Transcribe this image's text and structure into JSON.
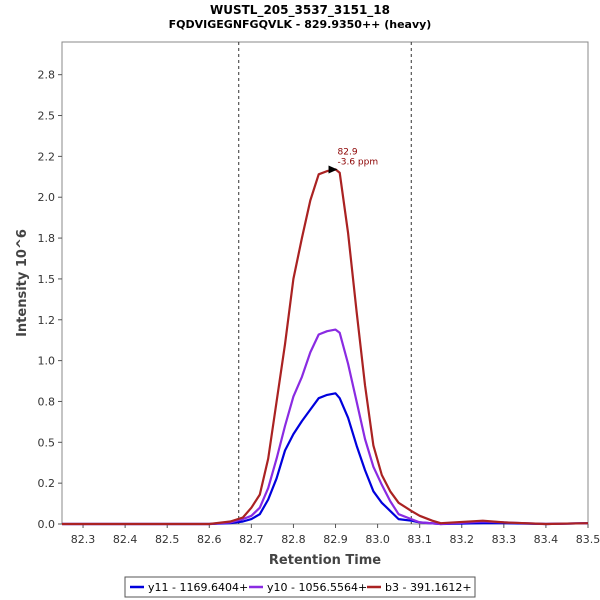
{
  "chart_data": {
    "type": "line",
    "title": "WUSTL_205_3537_3151_18",
    "subtitle": "FQDVIGEGNFGQVLK - 829.9350++ (heavy)",
    "xlabel": "Retention Time",
    "ylabel": "Intensity 10^6",
    "xlim": [
      82.25,
      83.5
    ],
    "ylim": [
      0,
      2.95
    ],
    "x_ticks": [
      "82.3",
      "82.4",
      "82.5",
      "82.6",
      "82.7",
      "82.8",
      "82.9",
      "83.0",
      "83.1",
      "83.2",
      "83.3",
      "83.4",
      "83.5"
    ],
    "y_ticks": [
      "0.0",
      "0.2",
      "0.5",
      "0.8",
      "1.0",
      "1.2",
      "1.5",
      "1.8",
      "2.0",
      "2.2",
      "2.5",
      "2.8"
    ],
    "boundaries": [
      82.67,
      83.08
    ],
    "annotation": {
      "x": 82.9,
      "y": 2.17,
      "line1": "82.9",
      "line2": "-3.6 ppm"
    },
    "series": [
      {
        "name": "y11 - 1169.6404+",
        "color": "#0000dd",
        "points": [
          [
            82.25,
            0.0
          ],
          [
            82.6,
            0.0
          ],
          [
            82.65,
            0.005
          ],
          [
            82.68,
            0.015
          ],
          [
            82.7,
            0.03
          ],
          [
            82.72,
            0.06
          ],
          [
            82.74,
            0.15
          ],
          [
            82.76,
            0.28
          ],
          [
            82.78,
            0.45
          ],
          [
            82.8,
            0.55
          ],
          [
            82.82,
            0.63
          ],
          [
            82.84,
            0.7
          ],
          [
            82.86,
            0.77
          ],
          [
            82.88,
            0.79
          ],
          [
            82.9,
            0.8
          ],
          [
            82.91,
            0.77
          ],
          [
            82.93,
            0.65
          ],
          [
            82.95,
            0.48
          ],
          [
            82.97,
            0.33
          ],
          [
            82.99,
            0.2
          ],
          [
            83.01,
            0.13
          ],
          [
            83.03,
            0.08
          ],
          [
            83.05,
            0.03
          ],
          [
            83.08,
            0.02
          ],
          [
            83.1,
            0.01
          ],
          [
            83.15,
            0.0
          ],
          [
            83.25,
            0.005
          ],
          [
            83.3,
            0.005
          ],
          [
            83.4,
            0.0
          ],
          [
            83.5,
            0.005
          ]
        ]
      },
      {
        "name": "y10 - 1056.5564+",
        "color": "#8a2be2",
        "points": [
          [
            82.25,
            0.0
          ],
          [
            82.6,
            0.0
          ],
          [
            82.65,
            0.01
          ],
          [
            82.68,
            0.03
          ],
          [
            82.7,
            0.05
          ],
          [
            82.72,
            0.1
          ],
          [
            82.74,
            0.22
          ],
          [
            82.76,
            0.4
          ],
          [
            82.78,
            0.6
          ],
          [
            82.8,
            0.78
          ],
          [
            82.82,
            0.9
          ],
          [
            82.84,
            1.05
          ],
          [
            82.86,
            1.16
          ],
          [
            82.88,
            1.18
          ],
          [
            82.9,
            1.19
          ],
          [
            82.91,
            1.17
          ],
          [
            82.93,
            0.98
          ],
          [
            82.95,
            0.75
          ],
          [
            82.97,
            0.52
          ],
          [
            82.99,
            0.35
          ],
          [
            83.01,
            0.24
          ],
          [
            83.03,
            0.14
          ],
          [
            83.05,
            0.06
          ],
          [
            83.08,
            0.03
          ],
          [
            83.1,
            0.01
          ],
          [
            83.15,
            0.0
          ],
          [
            83.25,
            0.015
          ],
          [
            83.3,
            0.01
          ],
          [
            83.4,
            0.0
          ],
          [
            83.5,
            0.005
          ]
        ]
      },
      {
        "name": "b3 - 391.1612+",
        "color": "#aa2222",
        "points": [
          [
            82.25,
            0.0
          ],
          [
            82.6,
            0.0
          ],
          [
            82.65,
            0.015
          ],
          [
            82.68,
            0.04
          ],
          [
            82.7,
            0.1
          ],
          [
            82.72,
            0.18
          ],
          [
            82.74,
            0.4
          ],
          [
            82.76,
            0.75
          ],
          [
            82.78,
            1.1
          ],
          [
            82.8,
            1.5
          ],
          [
            82.82,
            1.75
          ],
          [
            82.84,
            1.98
          ],
          [
            82.86,
            2.14
          ],
          [
            82.88,
            2.16
          ],
          [
            82.9,
            2.17
          ],
          [
            82.91,
            2.15
          ],
          [
            82.93,
            1.78
          ],
          [
            82.95,
            1.3
          ],
          [
            82.97,
            0.85
          ],
          [
            82.99,
            0.48
          ],
          [
            83.01,
            0.3
          ],
          [
            83.03,
            0.2
          ],
          [
            83.05,
            0.13
          ],
          [
            83.08,
            0.08
          ],
          [
            83.1,
            0.05
          ],
          [
            83.13,
            0.02
          ],
          [
            83.15,
            0.005
          ],
          [
            83.25,
            0.02
          ],
          [
            83.3,
            0.01
          ],
          [
            83.4,
            0.0
          ],
          [
            83.5,
            0.005
          ]
        ]
      }
    ]
  }
}
